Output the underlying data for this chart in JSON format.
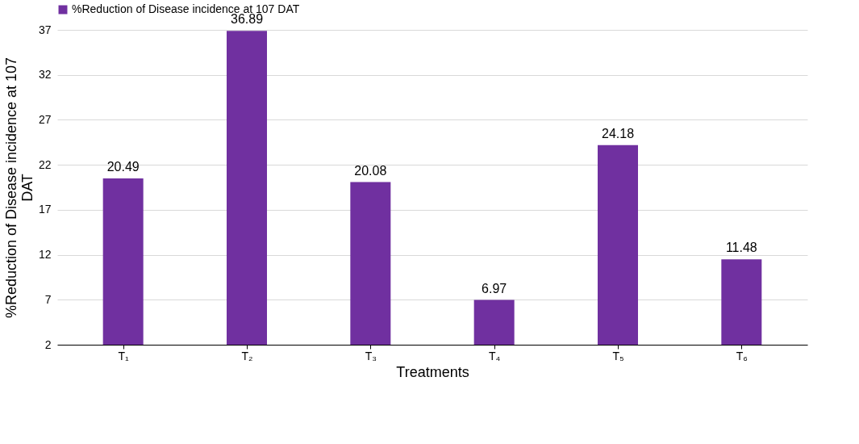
{
  "chart_data": {
    "type": "bar",
    "categories": [
      "T₁",
      "T₂",
      "T₃",
      "T₄",
      "T₅",
      "T₆"
    ],
    "series": [
      {
        "name": "%Reduction of Disease incidence at 107 DAT",
        "color": "#7030a0",
        "values": [
          20.49,
          36.89,
          20.08,
          6.97,
          24.18,
          11.48
        ]
      }
    ],
    "xlabel": "Treatments",
    "ylabel": "%Reduction of Disease incidence at 107 DAT",
    "ylim": [
      2,
      37
    ],
    "yticks": [
      2,
      7,
      12,
      17,
      22,
      27,
      32,
      37
    ],
    "grid": "y",
    "legend": "top",
    "data_labels": true
  }
}
